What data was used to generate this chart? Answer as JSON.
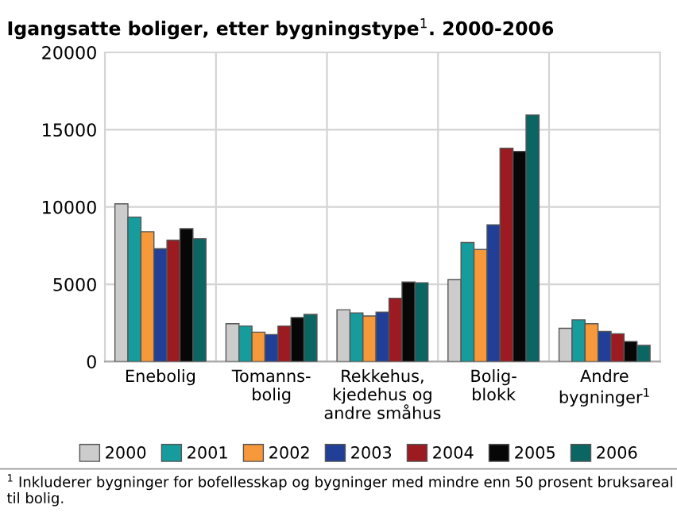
{
  "chart_data": {
    "type": "bar",
    "title": "Igangsatte boliger, etter bygningstype$^{1}$. 2000-2006",
    "categories": [
      "Enebolig",
      "Tomanns-\nbolig",
      "Rekkehus,\nkjedehus og\nandre småhus",
      "Bolig-\nblokk",
      "Andre\nbygninger$^{1}$"
    ],
    "series": [
      {
        "name": "2000",
        "color": "#cccccc",
        "values": [
          10200,
          2450,
          3350,
          5300,
          2150
        ]
      },
      {
        "name": "2001",
        "color": "#169c9c",
        "values": [
          9350,
          2300,
          3150,
          7700,
          2700
        ]
      },
      {
        "name": "2002",
        "color": "#f7993a",
        "values": [
          8400,
          1900,
          2950,
          7250,
          2450
        ]
      },
      {
        "name": "2003",
        "color": "#213f97",
        "values": [
          7300,
          1750,
          3200,
          8850,
          1950
        ]
      },
      {
        "name": "2004",
        "color": "#9b1b21",
        "values": [
          7850,
          2300,
          4100,
          13800,
          1800
        ]
      },
      {
        "name": "2005",
        "color": "#070707",
        "values": [
          8600,
          2850,
          5150,
          13600,
          1300
        ]
      },
      {
        "name": "2006",
        "color": "#0b6663",
        "values": [
          7950,
          3050,
          5100,
          15950,
          1050
        ]
      }
    ],
    "ylim": [
      0,
      20000
    ],
    "yticks": [
      0,
      5000,
      10000,
      15000,
      20000
    ],
    "grid": true,
    "legend": "bottom",
    "annotations": [
      "$^{1}$ Inkluderer bygninger for bofellesskap og bygninger med mindre enn 50 prosent bruksareal til bolig."
    ]
  }
}
